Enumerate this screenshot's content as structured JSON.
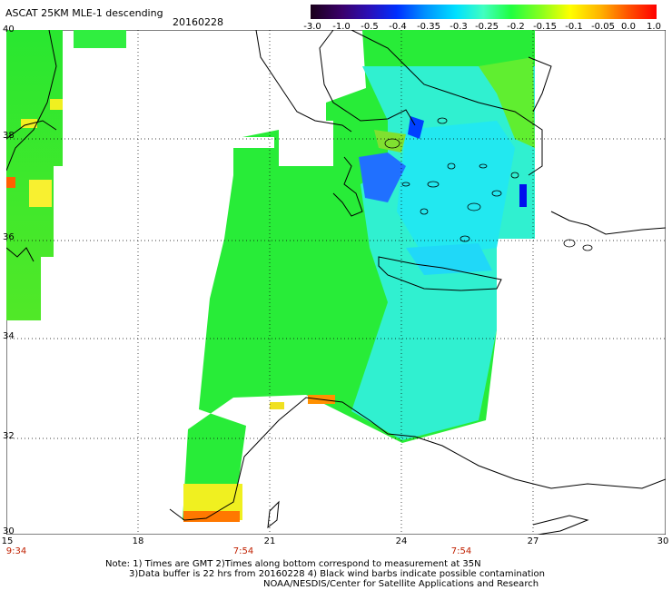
{
  "header": {
    "title": "ASCAT 25KM MLE-1 descending",
    "date": "20160228"
  },
  "colorbar": {
    "ticks": [
      "-3.0",
      "-1.0",
      "-0.5",
      "-0.4",
      "-0.35",
      "-0.3",
      "-0.25",
      "-0.2",
      "-0.15",
      "-0.1",
      "-0.05",
      "0.0",
      "1.0"
    ]
  },
  "axes": {
    "lon_labels": [
      "15",
      "18",
      "21",
      "24",
      "27",
      "30"
    ],
    "lat_labels": [
      "40",
      "38",
      "36",
      "34",
      "32",
      "30"
    ],
    "time_labels": [
      "9:34",
      "7:54",
      "7:54"
    ]
  },
  "notes": {
    "line1": "Note: 1) Times are GMT 2)Times along bottom correspond to measurement at 35N",
    "line2": "3)Data buffer is 22 hrs from 20160228 4) Black wind barbs indicate possible contamination",
    "line3": "NOAA/NESDIS/Center for Satellite Applications and Research"
  },
  "colors": {
    "green": "#22ee22",
    "cyan": "#22eeee",
    "blue": "#0044ff",
    "yellow": "#ffff00",
    "orange": "#ff8800"
  }
}
